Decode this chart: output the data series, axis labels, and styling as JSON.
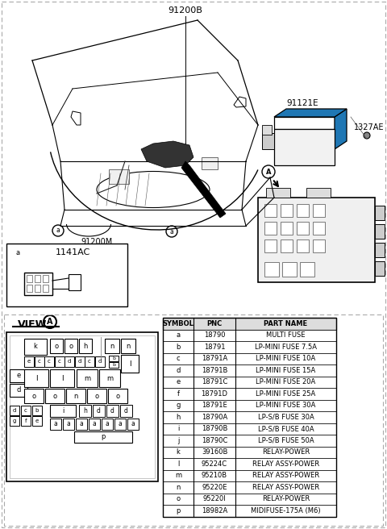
{
  "title_label": "91200B",
  "part_label_1": "91121E",
  "part_label_2": "1327AE",
  "part_label_3": "91200M",
  "connector_label": "1141AC",
  "table_headers": [
    "SYMBOL",
    "PNC",
    "PART NAME"
  ],
  "table_rows": [
    [
      "a",
      "18790",
      "MULTI FUSE"
    ],
    [
      "b",
      "18791",
      "LP-MINI FUSE 7.5A"
    ],
    [
      "c",
      "18791A",
      "LP-MINI FUSE 10A"
    ],
    [
      "d",
      "18791B",
      "LP-MINI FUSE 15A"
    ],
    [
      "e",
      "18791C",
      "LP-MINI FUSE 20A"
    ],
    [
      "f",
      "18791D",
      "LP-MINI FUSE 25A"
    ],
    [
      "g",
      "18791E",
      "LP-MINI FUSE 30A"
    ],
    [
      "h",
      "18790A",
      "LP-S/B FUSE 30A"
    ],
    [
      "i",
      "18790B",
      "LP-S/B FUSE 40A"
    ],
    [
      "j",
      "18790C",
      "LP-S/B FUSE 50A"
    ],
    [
      "k",
      "39160B",
      "RELAY-POWER"
    ],
    [
      "l",
      "95224C",
      "RELAY ASSY-POWER"
    ],
    [
      "m",
      "95210B",
      "RELAY ASSY-POWER"
    ],
    [
      "n",
      "95220E",
      "RELAY ASSY-POWER"
    ],
    [
      "o",
      "95220I",
      "RELAY-POWER"
    ],
    [
      "p",
      "18982A",
      "MIDIFUSE-175A (M6)"
    ]
  ],
  "bg_color": "#ffffff",
  "dashed_border": "#aaaaaa",
  "text_color": "#000000"
}
